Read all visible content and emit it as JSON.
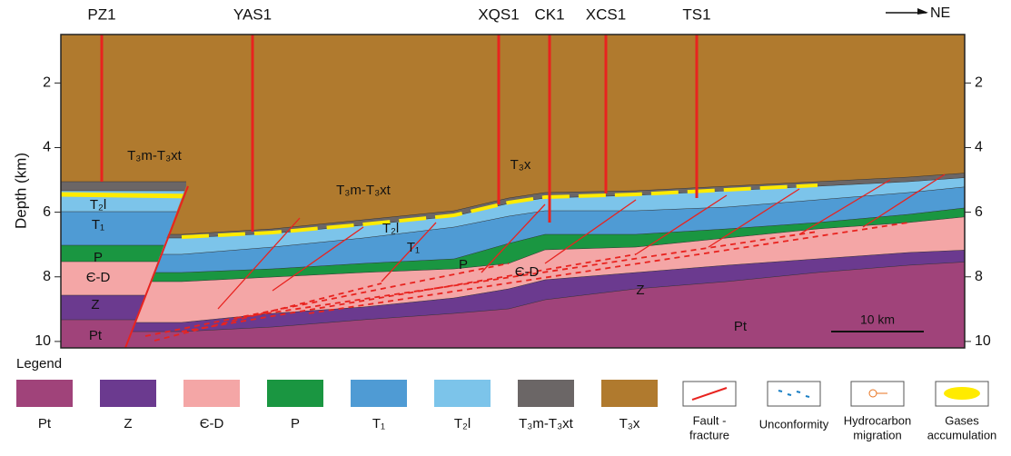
{
  "wells": [
    "PZ1",
    "YAS1",
    "XQS1",
    "CK1",
    "XCS1",
    "TS1"
  ],
  "direction": "NE",
  "depth_axis": {
    "label": "Depth (km)",
    "ticks": [
      2,
      4,
      6,
      8,
      10
    ],
    "range": [
      0.5,
      10.2
    ]
  },
  "section_labels": [
    "T₃m-T₃xt",
    "T₂l",
    "T₁",
    "P",
    "Є-D",
    "Z",
    "Pt",
    "T₃m-T₃xt",
    "T₂l",
    "T₁",
    "P",
    "Є-D",
    "T₃x",
    "Z",
    "Pt"
  ],
  "scale_bar": "10 km",
  "legend": {
    "title": "Legend",
    "units": [
      "Pt",
      "Z",
      "Є-D",
      "P",
      "T₁",
      "T₂l",
      "T₃m-T₃xt",
      "T₃x"
    ],
    "symbols": [
      [
        "Fault -",
        "fracture"
      ],
      [
        "Unconformity"
      ],
      [
        "Hydrocarbon",
        "migration"
      ],
      [
        "Gases",
        "accumulation"
      ]
    ]
  }
}
